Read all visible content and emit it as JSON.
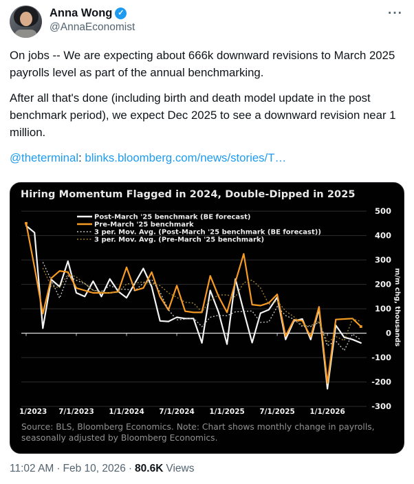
{
  "tweet": {
    "author": {
      "name": "Anna Wong",
      "handle": "@AnnaEconomist",
      "verified_glyph": "✓"
    },
    "icons": {
      "more": "more-horizontal-dots",
      "verified": "verified-check-badge"
    },
    "more_glyph": "···",
    "body": {
      "p1": "On jobs -- We are expecting about 666k downward revisions to March 2025 payrolls level as part of the annual benchmarking.",
      "p2": "After all that's done (including birth and death model update in the post benchmark period), we expect Dec 2025 to see a downward revision near 1 million.",
      "p3_mention": "@theterminal",
      "p3_sep": ": ",
      "p3_link": "blinks.bloomberg.com/news/stories/T…"
    },
    "footer": {
      "time": "11:02 AM",
      "separator": "·",
      "date": "Feb 10, 2026",
      "views_count": "80.6K",
      "views_label": "Views"
    }
  },
  "chart_data": {
    "type": "line",
    "title": "Hiring Momentum Flagged in 2024, Double-Dipped in 2025",
    "ylabel": "m/m chg, thousands",
    "source_note": "Source: BLS, Bloomberg Economics. Note: Chart shows monthly change in payrolls, seasonally adjusted by Bloomberg Economics.",
    "background": "#010101",
    "grid": true,
    "grid_color": "#2e2e2e",
    "zero_line_color": "#dedede",
    "legend_position": "top-left-inside",
    "x_frequency": "monthly",
    "x_start": "2023-01",
    "x_end": "2026-05",
    "n_points": 41,
    "x_tick_labels": [
      "1/2023",
      "7/1/2023",
      "1/1/2024",
      "7/1/2024",
      "1/1/2025",
      "7/1/2025",
      "1/1/2026"
    ],
    "x_tick_month_index": [
      0,
      6,
      12,
      18,
      24,
      30,
      36
    ],
    "ylim": [
      -300,
      500
    ],
    "y_ticks": [
      500,
      400,
      300,
      200,
      100,
      0,
      -100,
      -200,
      -300
    ],
    "series": [
      {
        "name": "Post-March '25 benchmark (BE forecast)",
        "color": "#f4f4f4",
        "style": "solid",
        "values": [
          440,
          412,
          20,
          220,
          190,
          295,
          165,
          150,
          213,
          150,
          222,
          171,
          145,
          205,
          265,
          190,
          50,
          48,
          65,
          60,
          60,
          -40,
          175,
          85,
          -45,
          222,
          90,
          -39,
          82,
          96,
          147,
          -26,
          50,
          58,
          -26,
          100,
          -228,
          32,
          -17,
          -26,
          -40
        ]
      },
      {
        "name": "Pre-March '25 benchmark",
        "color": "#f79b23",
        "style": "solid",
        "end_markers": true,
        "values": [
          450,
          270,
          80,
          225,
          255,
          250,
          185,
          175,
          165,
          165,
          165,
          170,
          270,
          175,
          185,
          250,
          150,
          95,
          195,
          90,
          85,
          85,
          235,
          150,
          85,
          210,
          325,
          117,
          113,
          124,
          159,
          -12,
          55,
          51,
          -15,
          108,
          -205,
          56,
          58,
          60,
          27
        ]
      },
      {
        "name": "3 per. Mov. Avg. (Post-March '25 benchmark (BE forecast))",
        "color": "#c4c4c4",
        "style": "dotted",
        "derived": "3-period trailing moving average of series 0"
      },
      {
        "name": "3 per. Mov. Avg. (Pre-March '25 benchmark)",
        "color": "#a08431",
        "style": "dotted",
        "derived": "3-period trailing moving average of series 1"
      }
    ]
  }
}
